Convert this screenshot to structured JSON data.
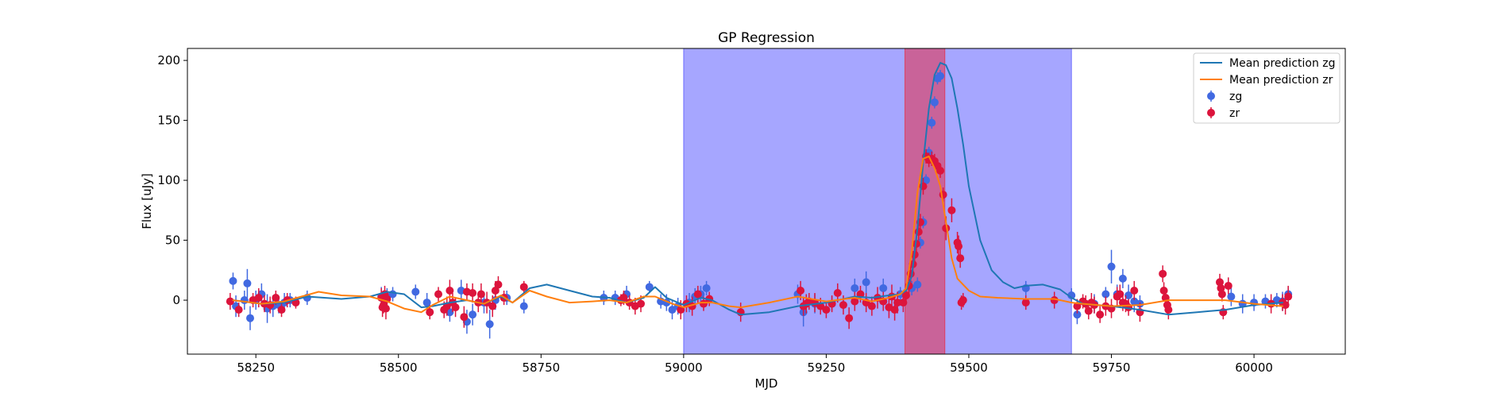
{
  "chart_data": {
    "type": "scatter",
    "title": "GP Regression",
    "xlabel": "MJD",
    "ylabel": "Flux [uJy]",
    "xlim": [
      58130,
      60160
    ],
    "ylim": [
      -45,
      210
    ],
    "xticks": [
      58250,
      58500,
      58750,
      59000,
      59250,
      59500,
      59750,
      60000
    ],
    "yticks": [
      0,
      50,
      100,
      150,
      200
    ],
    "grid": false,
    "legend_position": "top-right",
    "spans": [
      {
        "name": "span-blue",
        "x0": 59000,
        "x1": 59680,
        "color": "#0000ff",
        "alpha": 0.35
      },
      {
        "name": "span-red",
        "x0": 59388,
        "x1": 59458,
        "color": "#ff0000",
        "alpha": 0.4
      }
    ],
    "series": [
      {
        "name": "Mean prediction zg",
        "kind": "line",
        "color": "#1f77b4",
        "x": [
          58210,
          58260,
          58300,
          58340,
          58400,
          58450,
          58480,
          58510,
          58540,
          58560,
          58590,
          58620,
          58650,
          58680,
          58700,
          58730,
          58760,
          58800,
          58840,
          58870,
          58900,
          58930,
          58950,
          58970,
          59000,
          59030,
          59050,
          59080,
          59100,
          59150,
          59200,
          59250,
          59300,
          59330,
          59360,
          59380,
          59390,
          59400,
          59410,
          59420,
          59430,
          59440,
          59450,
          59460,
          59470,
          59480,
          59490,
          59500,
          59520,
          59540,
          59560,
          59580,
          59600,
          59630,
          59660,
          59680,
          59700,
          59750,
          59800,
          59850,
          59900,
          59950,
          60000,
          60050
        ],
        "y": [
          0,
          -3,
          -2,
          3,
          1,
          3,
          7,
          5,
          -6,
          -5,
          -2,
          0,
          -3,
          3,
          -2,
          10,
          13,
          8,
          3,
          2,
          -2,
          2,
          11,
          2,
          -4,
          2,
          0,
          -8,
          -12,
          -10,
          -5,
          -2,
          3,
          2,
          4,
          5,
          8,
          20,
          60,
          115,
          160,
          188,
          198,
          196,
          185,
          160,
          130,
          95,
          50,
          25,
          15,
          10,
          12,
          13,
          9,
          2,
          -3,
          -5,
          -8,
          -12,
          -10,
          -8,
          -4,
          -2
        ]
      },
      {
        "name": "Mean prediction zr",
        "kind": "line",
        "color": "#ff7f0e",
        "x": [
          58210,
          58260,
          58300,
          58330,
          58360,
          58400,
          58450,
          58480,
          58510,
          58540,
          58560,
          58590,
          58620,
          58650,
          58680,
          58700,
          58730,
          58760,
          58800,
          58840,
          58870,
          58900,
          58930,
          58950,
          58980,
          59000,
          59030,
          59050,
          59080,
          59100,
          59150,
          59200,
          59250,
          59300,
          59330,
          59360,
          59380,
          59390,
          59400,
          59410,
          59420,
          59430,
          59440,
          59450,
          59460,
          59470,
          59480,
          59500,
          59520,
          59550,
          59600,
          59650,
          59680,
          59700,
          59750,
          59800,
          59850,
          59900,
          59950,
          60000,
          60050
        ],
        "y": [
          0,
          -3,
          -1,
          3,
          7,
          4,
          3,
          -1,
          -7,
          -10,
          -4,
          3,
          0,
          -3,
          4,
          -2,
          8,
          3,
          -2,
          -1,
          0,
          -2,
          3,
          3,
          -3,
          -6,
          -2,
          -2,
          -5,
          -6,
          -2,
          3,
          -1,
          2,
          -1,
          2,
          5,
          10,
          40,
          90,
          118,
          120,
          110,
          95,
          65,
          35,
          18,
          8,
          3,
          2,
          1,
          1,
          -2,
          -3,
          -5,
          -4,
          0,
          0,
          0,
          -3,
          -5
        ]
      },
      {
        "name": "zg",
        "kind": "errorbar",
        "color": "#4169e1",
        "x": [
          58210,
          58215,
          58230,
          58235,
          58240,
          58250,
          58260,
          58270,
          58280,
          58290,
          58300,
          58310,
          58340,
          58470,
          58475,
          58480,
          58490,
          58530,
          58550,
          58590,
          58610,
          58620,
          58630,
          58650,
          58660,
          58670,
          58690,
          58720,
          58860,
          58880,
          58900,
          58940,
          58960,
          58970,
          58980,
          58990,
          59010,
          59020,
          59030,
          59040,
          59200,
          59210,
          59230,
          59260,
          59300,
          59320,
          59350,
          59380,
          59400,
          59410,
          59415,
          59420,
          59425,
          59430,
          59435,
          59440,
          59445,
          59450,
          59600,
          59680,
          59690,
          59720,
          59740,
          59750,
          59760,
          59770,
          59780,
          59790,
          59800,
          59960,
          59980,
          60000,
          60020,
          60040,
          60050,
          60060
        ],
        "y": [
          16,
          -5,
          0,
          14,
          -15,
          0,
          5,
          -7,
          -5,
          -4,
          -2,
          0,
          2,
          3,
          0,
          3,
          5,
          7,
          -2,
          -10,
          8,
          -18,
          -12,
          -2,
          -20,
          0,
          2,
          -5,
          2,
          2,
          5,
          11,
          -1,
          -2,
          -8,
          -5,
          -2,
          3,
          5,
          10,
          5,
          -10,
          -3,
          -3,
          10,
          15,
          10,
          5,
          10,
          13,
          48,
          65,
          100,
          123,
          148,
          165,
          185,
          187,
          10,
          4,
          -12,
          -3,
          5,
          28,
          5,
          18,
          4,
          -1,
          -3,
          3,
          -3,
          -2,
          -1,
          0,
          -1,
          5
        ],
        "yerr": [
          7,
          9,
          8,
          12,
          10,
          8,
          9,
          12,
          9,
          7,
          8,
          6,
          6,
          8,
          8,
          7,
          6,
          6,
          8,
          8,
          9,
          10,
          9,
          9,
          12,
          8,
          6,
          6,
          6,
          6,
          7,
          5,
          6,
          7,
          8,
          7,
          8,
          7,
          7,
          6,
          8,
          12,
          8,
          6,
          8,
          9,
          8,
          6,
          6,
          6,
          5,
          5,
          5,
          5,
          5,
          5,
          5,
          5,
          6,
          6,
          8,
          8,
          6,
          14,
          8,
          8,
          9,
          9,
          7,
          8,
          8,
          7,
          6,
          6,
          8,
          6
        ]
      },
      {
        "name": "zr",
        "kind": "errorbar",
        "color": "#dc143c",
        "x": [
          58205,
          58220,
          58245,
          58255,
          58265,
          58275,
          58285,
          58295,
          58305,
          58320,
          58470,
          58472,
          58474,
          58476,
          58478,
          58480,
          58555,
          58570,
          58580,
          58585,
          58590,
          58595,
          58600,
          58615,
          58620,
          58630,
          58640,
          58645,
          58655,
          58665,
          58670,
          58675,
          58685,
          58720,
          58890,
          58895,
          58905,
          58915,
          58925,
          58995,
          59005,
          59015,
          59025,
          59035,
          59045,
          59100,
          59205,
          59210,
          59215,
          59220,
          59230,
          59240,
          59250,
          59260,
          59270,
          59280,
          59290,
          59300,
          59310,
          59320,
          59330,
          59340,
          59350,
          59360,
          59365,
          59370,
          59375,
          59385,
          59390,
          59395,
          59398,
          59402,
          59405,
          59408,
          59412,
          59415,
          59420,
          59425,
          59430,
          59435,
          59440,
          59445,
          59450,
          59455,
          59460,
          59470,
          59480,
          59482,
          59485,
          59487,
          59490,
          59600,
          59650,
          59690,
          59700,
          59705,
          59710,
          59715,
          59720,
          59730,
          59740,
          59750,
          59760,
          59765,
          59770,
          59775,
          59780,
          59790,
          59800,
          59840,
          59842,
          59845,
          59848,
          59850,
          59940,
          59942,
          59944,
          59946,
          59955,
          60030,
          60050,
          60055,
          60060
        ],
        "y": [
          -1,
          -8,
          0,
          2,
          -3,
          -4,
          2,
          -8,
          0,
          -2,
          2,
          -6,
          -4,
          5,
          -7,
          1,
          -10,
          5,
          -8,
          -5,
          8,
          -2,
          -6,
          -14,
          7,
          6,
          -2,
          5,
          -2,
          -5,
          8,
          13,
          2,
          11,
          0,
          2,
          -2,
          -5,
          -3,
          -8,
          -3,
          -5,
          5,
          -3,
          1,
          -10,
          8,
          -5,
          -3,
          -1,
          -2,
          -5,
          -8,
          -3,
          6,
          -4,
          -15,
          -1,
          5,
          -2,
          -5,
          2,
          -1,
          -6,
          3,
          -8,
          -2,
          -2,
          4,
          12,
          22,
          30,
          38,
          47,
          57,
          65,
          95,
          120,
          117,
          118,
          116,
          112,
          108,
          88,
          60,
          75,
          48,
          45,
          35,
          -2,
          0,
          -2,
          0,
          -5,
          -1,
          -3,
          -9,
          -2,
          -4,
          -12,
          -5,
          -7,
          3,
          5,
          -2,
          -3,
          -6,
          8,
          -10,
          22,
          8,
          2,
          -4,
          -8,
          15,
          10,
          5,
          -10,
          12,
          -3,
          -2,
          -4,
          3
        ],
        "yerr": [
          7,
          6,
          6,
          8,
          7,
          7,
          6,
          6,
          6,
          5,
          8,
          8,
          7,
          7,
          9,
          7,
          6,
          6,
          7,
          8,
          9,
          8,
          8,
          9,
          7,
          8,
          8,
          9,
          9,
          9,
          8,
          7,
          6,
          5,
          5,
          6,
          6,
          7,
          7,
          8,
          7,
          8,
          7,
          6,
          6,
          8,
          8,
          8,
          8,
          7,
          8,
          7,
          7,
          7,
          8,
          8,
          9,
          8,
          7,
          8,
          8,
          9,
          8,
          9,
          10,
          9,
          9,
          8,
          7,
          7,
          7,
          7,
          7,
          7,
          7,
          7,
          7,
          6,
          6,
          6,
          6,
          6,
          6,
          6,
          10,
          10,
          9,
          9,
          8,
          6,
          6,
          6,
          7,
          6,
          6,
          7,
          7,
          8,
          7,
          7,
          8,
          8,
          8,
          8,
          7,
          7,
          7,
          8,
          8,
          7,
          7,
          7,
          8,
          8,
          7,
          8,
          6,
          6,
          7,
          8,
          7,
          8,
          9
        ]
      }
    ]
  }
}
